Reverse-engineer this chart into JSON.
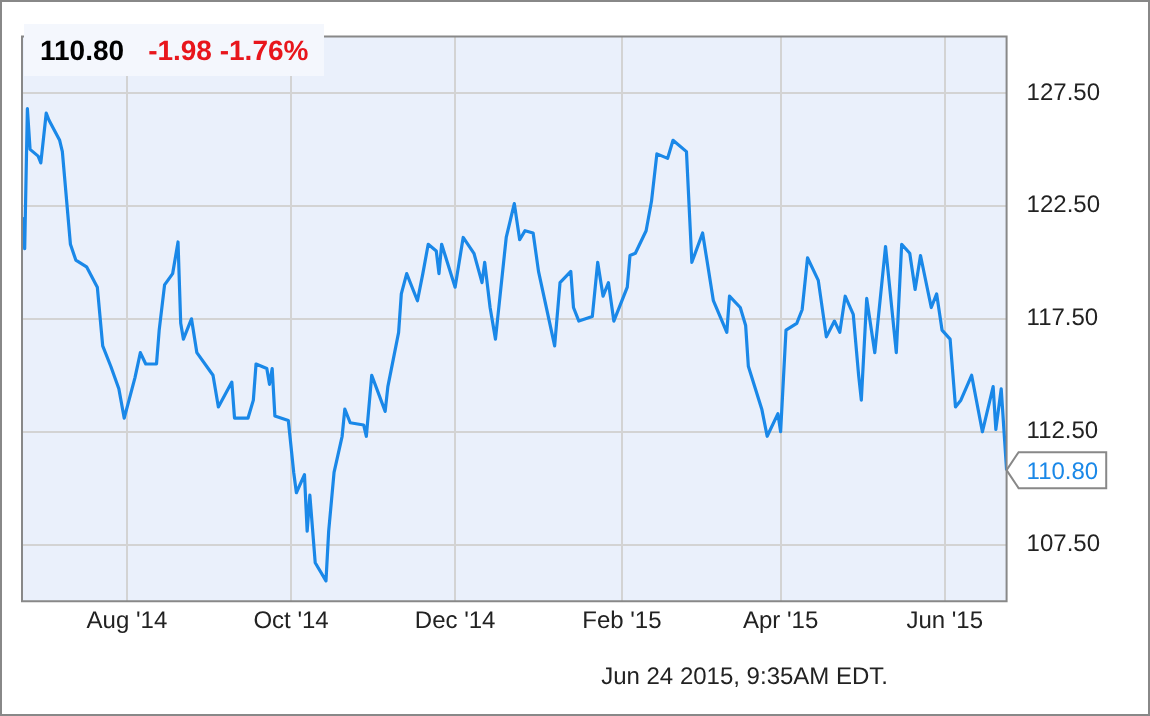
{
  "chart_data": {
    "type": "line",
    "title": "110.80",
    "subtitle": "-1.98  -1.76%",
    "annotations": [
      {
        "text": "110.80",
        "x": "2015-06-24",
        "y": 110.8
      },
      "Jun 24 2015, 9:35AM EDT."
    ],
    "xlim": [
      "2014-06-23",
      "2015-06-24"
    ],
    "xticks": [
      {
        "value": "2014-08-01",
        "label": "Aug '14"
      },
      {
        "value": "2014-10-01",
        "label": "Oct '14"
      },
      {
        "value": "2014-12-01",
        "label": "Dec '14"
      },
      {
        "value": "2015-02-01",
        "label": "Feb '15"
      },
      {
        "value": "2015-04-01",
        "label": "Apr '15"
      },
      {
        "value": "2015-06-01",
        "label": "Jun '15"
      }
    ],
    "ylim": [
      105,
      130
    ],
    "yticks": [
      {
        "value": 107.5,
        "label": "107.50"
      },
      {
        "value": 112.5,
        "label": "112.50"
      },
      {
        "value": 117.5,
        "label": "117.50"
      },
      {
        "value": 122.5,
        "label": "122.50"
      },
      {
        "value": 127.5,
        "label": "127.50"
      }
    ],
    "grid": true,
    "marker": "none",
    "line_style": "solid",
    "series": [
      {
        "color": "#1a88e8",
        "x": [
          "2014-06-23",
          "2014-06-24",
          "2014-06-25",
          "2014-06-26",
          "2014-06-29",
          "2014-06-30",
          "2014-07-02",
          "2014-07-03",
          "2014-07-07",
          "2014-07-08",
          "2014-07-11",
          "2014-07-13",
          "2014-07-17",
          "2014-07-21",
          "2014-07-23",
          "2014-07-26",
          "2014-07-29",
          "2014-07-31",
          "2014-08-04",
          "2014-08-06",
          "2014-08-08",
          "2014-08-12",
          "2014-08-13",
          "2014-08-15",
          "2014-08-18",
          "2014-08-20",
          "2014-08-21",
          "2014-08-22",
          "2014-08-25",
          "2014-08-27",
          "2014-09-02",
          "2014-09-04",
          "2014-09-09",
          "2014-09-10",
          "2014-09-15",
          "2014-09-17",
          "2014-09-18",
          "2014-09-22",
          "2014-09-23",
          "2014-09-24",
          "2014-09-25",
          "2014-09-30",
          "2014-10-02",
          "2014-10-03",
          "2014-10-06",
          "2014-10-07",
          "2014-10-08",
          "2014-10-10",
          "2014-10-14",
          "2014-10-15",
          "2014-10-17",
          "2014-10-20",
          "2014-10-21",
          "2014-10-23",
          "2014-10-28",
          "2014-10-29",
          "2014-10-31",
          "2014-11-05",
          "2014-11-06",
          "2014-11-10",
          "2014-11-11",
          "2014-11-13",
          "2014-11-17",
          "2014-11-19",
          "2014-11-21",
          "2014-11-24",
          "2014-11-25",
          "2014-11-26",
          "2014-12-01",
          "2014-12-04",
          "2014-12-08",
          "2014-12-11",
          "2014-12-12",
          "2014-12-14",
          "2014-12-16",
          "2014-12-20",
          "2014-12-23",
          "2014-12-25",
          "2014-12-27",
          "2014-12-30",
          "2015-01-01",
          "2015-01-07",
          "2015-01-09",
          "2015-01-13",
          "2015-01-14",
          "2015-01-16",
          "2015-01-21",
          "2015-01-23",
          "2015-01-25",
          "2015-01-27",
          "2015-01-29",
          "2015-02-03",
          "2015-02-04",
          "2015-02-06",
          "2015-02-10",
          "2015-02-12",
          "2015-02-14",
          "2015-02-18",
          "2015-02-20",
          "2015-02-25",
          "2015-02-27",
          "2015-03-03",
          "2015-03-05",
          "2015-03-07",
          "2015-03-12",
          "2015-03-13",
          "2015-03-17",
          "2015-03-19",
          "2015-03-20",
          "2015-03-25",
          "2015-03-27",
          "2015-03-31",
          "2015-04-01",
          "2015-04-03",
          "2015-04-07",
          "2015-04-09",
          "2015-04-11",
          "2015-04-15",
          "2015-04-18",
          "2015-04-21",
          "2015-04-23",
          "2015-04-25",
          "2015-04-28",
          "2015-04-30",
          "2015-05-01",
          "2015-05-03",
          "2015-05-06",
          "2015-05-10",
          "2015-05-14",
          "2015-05-16",
          "2015-05-19",
          "2015-05-21",
          "2015-05-23",
          "2015-05-27",
          "2015-05-29",
          "2015-05-31",
          "2015-06-03",
          "2015-06-05",
          "2015-06-07",
          "2015-06-11",
          "2015-06-15",
          "2015-06-19",
          "2015-06-20",
          "2015-06-22",
          "2015-06-24"
        ],
        "values": [
          122.0,
          120.6,
          126.8,
          125.0,
          124.7,
          124.4,
          126.6,
          126.3,
          125.4,
          124.9,
          120.8,
          120.1,
          119.8,
          118.9,
          116.3,
          115.4,
          114.4,
          113.1,
          114.9,
          116.0,
          115.5,
          115.5,
          117.0,
          119.0,
          119.5,
          120.9,
          117.3,
          116.6,
          117.5,
          116.0,
          115.0,
          113.6,
          114.7,
          113.1,
          113.1,
          113.9,
          115.5,
          115.3,
          114.6,
          115.3,
          113.2,
          113.0,
          110.7,
          109.8,
          110.6,
          108.1,
          109.7,
          106.7,
          105.9,
          108.1,
          110.7,
          112.3,
          113.5,
          112.9,
          112.8,
          112.3,
          115.0,
          113.4,
          114.5,
          116.9,
          118.6,
          119.5,
          118.3,
          119.5,
          120.8,
          120.5,
          119.5,
          120.8,
          118.9,
          121.1,
          120.4,
          119.1,
          120.0,
          118.0,
          116.6,
          121.1,
          122.6,
          121.0,
          121.4,
          121.3,
          119.6,
          116.3,
          119.1,
          119.6,
          118.0,
          117.4,
          117.6,
          120.0,
          118.5,
          119.1,
          117.4,
          118.9,
          120.3,
          120.4,
          121.4,
          122.7,
          124.8,
          124.6,
          125.4,
          124.9,
          120.0,
          121.3,
          119.8,
          118.3,
          116.9,
          118.5,
          118.0,
          117.2,
          115.4,
          113.5,
          112.3,
          113.3,
          112.5,
          117.0,
          117.3,
          117.9,
          120.2,
          119.2,
          116.7,
          117.4,
          116.9,
          118.5,
          117.7,
          115.0,
          113.9,
          118.4,
          116.0,
          120.7,
          116.0,
          120.8,
          120.4,
          118.8,
          120.3,
          118.0,
          118.6,
          117.0,
          116.6,
          113.6,
          113.9,
          115.0,
          112.5,
          114.5,
          112.6,
          114.4,
          110.8
        ]
      }
    ]
  }
}
